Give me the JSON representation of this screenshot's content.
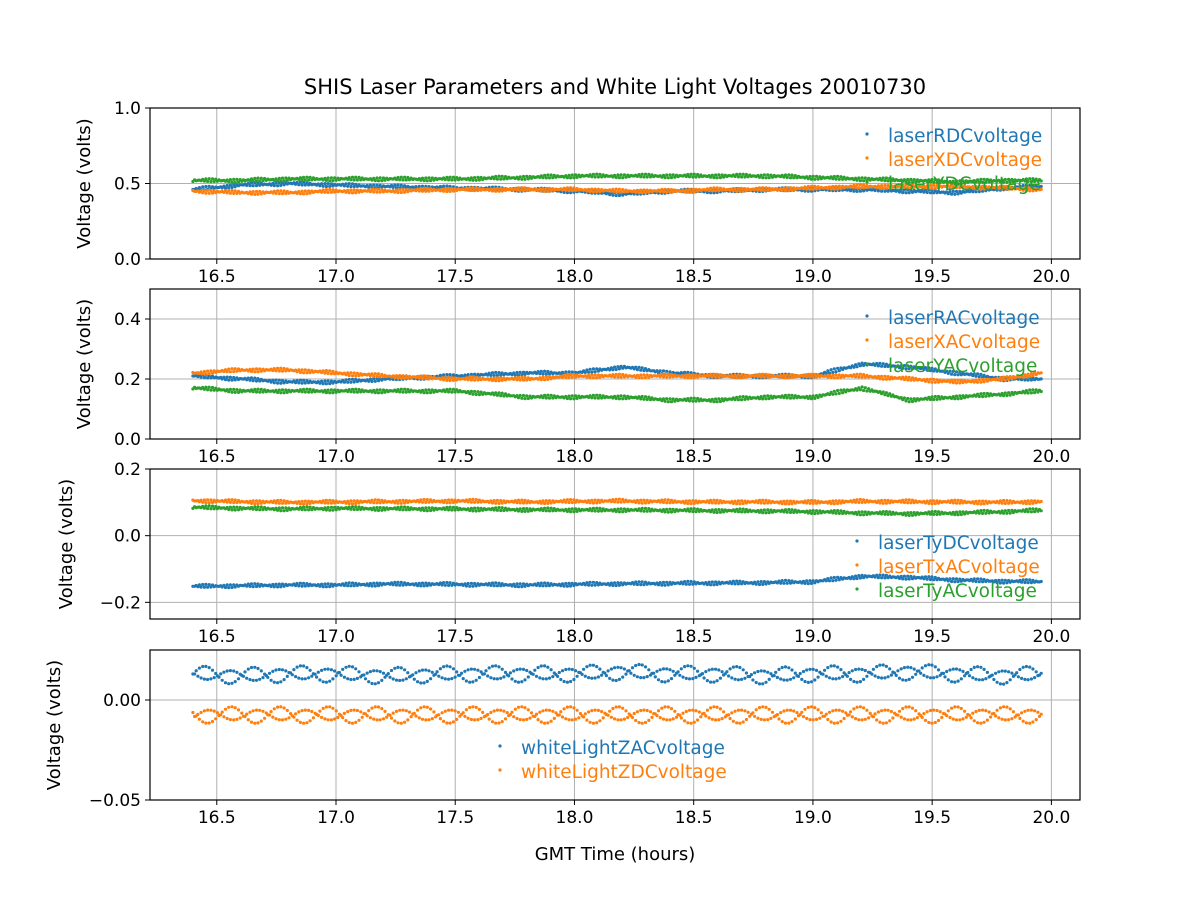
{
  "figure": {
    "title": "SHIS Laser Parameters and White Light Voltages 20010730",
    "xlabel": "GMT Time (hours)"
  },
  "colors": {
    "blue": "#1f77b4",
    "orange": "#ff7f0e",
    "green": "#2ca02c",
    "grid": "#b0b0b0"
  },
  "chart_data": [
    {
      "type": "scatter",
      "ylabel": "Voltage (volts)",
      "xlim": [
        16.22,
        20.12
      ],
      "ylim": [
        0.0,
        1.0
      ],
      "yticks": [
        "0.0",
        "0.5",
        "1.0"
      ],
      "xticks": [
        "16.5",
        "17.0",
        "17.5",
        "18.0",
        "18.5",
        "19.0",
        "19.5",
        "20.0"
      ],
      "grid": true,
      "legend_position": "upper-right",
      "series": [
        {
          "name": "laserRDCvoltage",
          "color": "blue",
          "x": [
            16.4,
            16.6,
            16.8,
            17.0,
            17.2,
            17.5,
            17.8,
            18.0,
            18.2,
            18.4,
            18.6,
            18.8,
            19.0,
            19.2,
            19.4,
            19.6,
            19.8,
            19.95
          ],
          "y": [
            0.46,
            0.49,
            0.5,
            0.49,
            0.48,
            0.47,
            0.46,
            0.45,
            0.43,
            0.45,
            0.45,
            0.46,
            0.46,
            0.46,
            0.45,
            0.44,
            0.47,
            0.48
          ]
        },
        {
          "name": "laserXDCvoltage",
          "color": "orange",
          "x": [
            16.4,
            16.6,
            16.8,
            17.0,
            17.2,
            17.5,
            17.8,
            18.0,
            18.2,
            18.4,
            18.6,
            18.8,
            19.0,
            19.2,
            19.4,
            19.6,
            19.8,
            19.95
          ],
          "y": [
            0.45,
            0.44,
            0.44,
            0.45,
            0.45,
            0.46,
            0.46,
            0.46,
            0.45,
            0.45,
            0.46,
            0.46,
            0.47,
            0.48,
            0.48,
            0.48,
            0.47,
            0.46
          ]
        },
        {
          "name": "laserYDCvoltage",
          "color": "green",
          "x": [
            16.4,
            16.6,
            16.8,
            17.0,
            17.2,
            17.5,
            17.8,
            18.0,
            18.2,
            18.4,
            18.6,
            18.8,
            19.0,
            19.2,
            19.4,
            19.6,
            19.8,
            19.95
          ],
          "y": [
            0.52,
            0.52,
            0.53,
            0.53,
            0.53,
            0.53,
            0.54,
            0.55,
            0.55,
            0.55,
            0.55,
            0.55,
            0.54,
            0.53,
            0.52,
            0.51,
            0.52,
            0.52
          ]
        }
      ]
    },
    {
      "type": "scatter",
      "ylabel": "Voltage (volts)",
      "xlim": [
        16.22,
        20.12
      ],
      "ylim": [
        0.0,
        0.5
      ],
      "yticks": [
        "0.0",
        "0.2",
        "0.4"
      ],
      "xticks": [
        "16.5",
        "17.0",
        "17.5",
        "18.0",
        "18.5",
        "19.0",
        "19.5",
        "20.0"
      ],
      "grid": true,
      "legend_position": "upper-right",
      "series": [
        {
          "name": "laserRACvoltage",
          "color": "blue",
          "x": [
            16.4,
            16.6,
            16.8,
            17.0,
            17.2,
            17.5,
            17.8,
            18.0,
            18.2,
            18.4,
            18.6,
            18.8,
            19.0,
            19.2,
            19.4,
            19.6,
            19.8,
            19.95
          ],
          "y": [
            0.21,
            0.2,
            0.19,
            0.19,
            0.2,
            0.21,
            0.22,
            0.22,
            0.24,
            0.22,
            0.21,
            0.21,
            0.21,
            0.25,
            0.24,
            0.22,
            0.2,
            0.2
          ]
        },
        {
          "name": "laserXACvoltage",
          "color": "orange",
          "x": [
            16.4,
            16.6,
            16.8,
            17.0,
            17.2,
            17.5,
            17.8,
            18.0,
            18.2,
            18.4,
            18.6,
            18.8,
            19.0,
            19.2,
            19.4,
            19.6,
            19.8,
            19.95
          ],
          "y": [
            0.22,
            0.23,
            0.23,
            0.22,
            0.21,
            0.2,
            0.2,
            0.21,
            0.21,
            0.21,
            0.21,
            0.21,
            0.21,
            0.21,
            0.2,
            0.19,
            0.2,
            0.22
          ]
        },
        {
          "name": "laserYACvoltage",
          "color": "green",
          "x": [
            16.4,
            16.6,
            16.8,
            17.0,
            17.2,
            17.5,
            17.8,
            18.0,
            18.2,
            18.4,
            18.6,
            18.8,
            19.0,
            19.2,
            19.4,
            19.6,
            19.8,
            19.95
          ],
          "y": [
            0.17,
            0.16,
            0.16,
            0.16,
            0.16,
            0.16,
            0.14,
            0.14,
            0.14,
            0.13,
            0.13,
            0.14,
            0.14,
            0.17,
            0.13,
            0.14,
            0.15,
            0.16
          ]
        }
      ]
    },
    {
      "type": "scatter",
      "ylabel": "Voltage (volts)",
      "xlim": [
        16.22,
        20.12
      ],
      "ylim": [
        -0.25,
        0.2
      ],
      "yticks": [
        "−0.2",
        "0.0",
        "0.2"
      ],
      "xticks": [
        "16.5",
        "17.0",
        "17.5",
        "18.0",
        "18.5",
        "19.0",
        "19.5",
        "20.0"
      ],
      "grid": true,
      "legend_position": "lower-right",
      "series": [
        {
          "name": "laserTyDCvoltage",
          "color": "blue",
          "x": [
            16.4,
            16.6,
            16.8,
            17.0,
            17.2,
            17.5,
            17.8,
            18.0,
            18.2,
            18.4,
            18.6,
            18.8,
            19.0,
            19.2,
            19.4,
            19.6,
            19.8,
            19.95
          ],
          "y": [
            -0.152,
            -0.15,
            -0.148,
            -0.148,
            -0.145,
            -0.146,
            -0.148,
            -0.146,
            -0.144,
            -0.143,
            -0.142,
            -0.141,
            -0.138,
            -0.122,
            -0.125,
            -0.133,
            -0.137,
            -0.138
          ]
        },
        {
          "name": "laserTxACvoltage",
          "color": "orange",
          "x": [
            16.4,
            16.6,
            16.8,
            17.0,
            17.2,
            17.5,
            17.8,
            18.0,
            18.2,
            18.4,
            18.6,
            18.8,
            19.0,
            19.2,
            19.4,
            19.6,
            19.8,
            19.95
          ],
          "y": [
            0.105,
            0.102,
            0.1,
            0.101,
            0.102,
            0.104,
            0.101,
            0.103,
            0.104,
            0.102,
            0.101,
            0.101,
            0.1,
            0.103,
            0.102,
            0.101,
            0.1,
            0.102
          ]
        },
        {
          "name": "laserTyACvoltage",
          "color": "green",
          "x": [
            16.4,
            16.6,
            16.8,
            17.0,
            17.2,
            17.5,
            17.8,
            18.0,
            18.2,
            18.4,
            18.6,
            18.8,
            19.0,
            19.2,
            19.4,
            19.6,
            19.8,
            19.95
          ],
          "y": [
            0.085,
            0.082,
            0.08,
            0.082,
            0.081,
            0.08,
            0.078,
            0.077,
            0.077,
            0.076,
            0.075,
            0.074,
            0.072,
            0.068,
            0.066,
            0.068,
            0.072,
            0.076
          ]
        }
      ]
    },
    {
      "type": "scatter",
      "ylabel": "Voltage (volts)",
      "xlim": [
        16.22,
        20.12
      ],
      "ylim": [
        -0.05,
        0.025
      ],
      "yticks": [
        "−0.05",
        "0.00"
      ],
      "xticks": [
        "16.5",
        "17.0",
        "17.5",
        "18.0",
        "18.5",
        "19.0",
        "19.5",
        "20.0"
      ],
      "grid": true,
      "legend_position": "lower-center",
      "series": [
        {
          "name": "whiteLightZACvoltage",
          "color": "blue",
          "x": [
            16.4,
            16.6,
            16.8,
            17.0,
            17.2,
            17.5,
            17.8,
            18.0,
            18.2,
            18.4,
            18.6,
            18.8,
            19.0,
            19.2,
            19.4,
            19.6,
            19.8,
            19.95
          ],
          "y": [
            0.013,
            0.012,
            0.013,
            0.013,
            0.012,
            0.013,
            0.013,
            0.013,
            0.014,
            0.013,
            0.013,
            0.012,
            0.013,
            0.013,
            0.014,
            0.013,
            0.012,
            0.013
          ]
        },
        {
          "name": "whiteLightZDCvoltage",
          "color": "orange",
          "x": [
            16.4,
            16.6,
            16.8,
            17.0,
            17.2,
            17.5,
            17.8,
            18.0,
            18.2,
            18.4,
            18.6,
            18.8,
            19.0,
            19.2,
            19.4,
            19.6,
            19.8,
            19.95
          ],
          "y": [
            -0.0075,
            -0.0075,
            -0.0075,
            -0.0075,
            -0.0075,
            -0.0075,
            -0.0075,
            -0.0075,
            -0.0075,
            -0.0075,
            -0.0075,
            -0.0075,
            -0.0075,
            -0.0075,
            -0.0075,
            -0.0075,
            -0.0075,
            -0.0075
          ]
        }
      ]
    }
  ]
}
